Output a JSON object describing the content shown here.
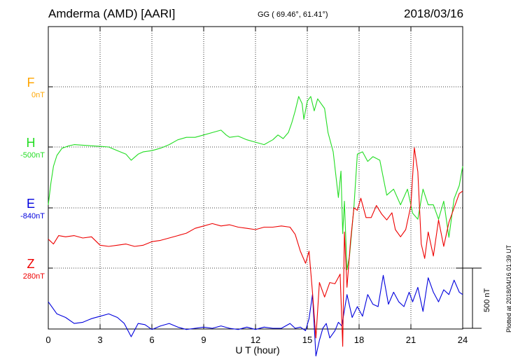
{
  "header": {
    "station": "Amderma (AMD)  [AARI]",
    "coords": "GG ( 69.46°,  61.41°)",
    "date": "2018/03/16"
  },
  "footer": {
    "plotted": "Plotted at 2018/04/16 01:39 UT",
    "scale_label": "500 nT"
  },
  "chart_data": {
    "type": "line",
    "xlabel": "U T (hour)",
    "xlim": [
      0,
      24
    ],
    "xticks": [
      0,
      3,
      6,
      9,
      12,
      15,
      18,
      21,
      24
    ],
    "grid": true,
    "scale_bar_nT": 500,
    "series": [
      {
        "name": "F",
        "baseline": "0nT",
        "color": "#ffa500",
        "values": []
      },
      {
        "name": "H",
        "baseline": "-500nT",
        "color": "#22dd22",
        "points": [
          [
            0,
            -480
          ],
          [
            0.15,
            -300
          ],
          [
            0.3,
            -160
          ],
          [
            0.5,
            -70
          ],
          [
            0.8,
            -10
          ],
          [
            1.2,
            10
          ],
          [
            1.5,
            20
          ],
          [
            2,
            15
          ],
          [
            2.5,
            10
          ],
          [
            3,
            5
          ],
          [
            3.5,
            0
          ],
          [
            4,
            -30
          ],
          [
            4.5,
            -60
          ],
          [
            4.8,
            -110
          ],
          [
            5.2,
            -60
          ],
          [
            5.5,
            -40
          ],
          [
            6,
            -30
          ],
          [
            6.5,
            -10
          ],
          [
            7,
            20
          ],
          [
            7.5,
            60
          ],
          [
            8,
            80
          ],
          [
            8.5,
            80
          ],
          [
            9,
            100
          ],
          [
            9.5,
            120
          ],
          [
            10,
            140
          ],
          [
            10.3,
            100
          ],
          [
            10.5,
            80
          ],
          [
            11,
            90
          ],
          [
            11.5,
            60
          ],
          [
            12,
            40
          ],
          [
            12.5,
            20
          ],
          [
            13,
            60
          ],
          [
            13.3,
            100
          ],
          [
            13.6,
            70
          ],
          [
            13.9,
            120
          ],
          [
            14.1,
            200
          ],
          [
            14.3,
            300
          ],
          [
            14.5,
            420
          ],
          [
            14.7,
            360
          ],
          [
            14.8,
            230
          ],
          [
            15,
            380
          ],
          [
            15.2,
            420
          ],
          [
            15.4,
            300
          ],
          [
            15.6,
            400
          ],
          [
            15.8,
            360
          ],
          [
            16,
            320
          ],
          [
            16.2,
            120
          ],
          [
            16.5,
            -40
          ],
          [
            16.8,
            -420
          ],
          [
            16.95,
            -200
          ],
          [
            17.05,
            -720
          ],
          [
            17.15,
            -450
          ],
          [
            17.3,
            -1020
          ],
          [
            17.45,
            -900
          ],
          [
            17.7,
            -500
          ],
          [
            17.9,
            -60
          ],
          [
            18.2,
            -40
          ],
          [
            18.5,
            -120
          ],
          [
            18.8,
            -80
          ],
          [
            19.2,
            -110
          ],
          [
            19.6,
            -400
          ],
          [
            20,
            -350
          ],
          [
            20.4,
            -480
          ],
          [
            20.8,
            -350
          ],
          [
            21.1,
            -550
          ],
          [
            21.4,
            -600
          ],
          [
            21.7,
            -350
          ],
          [
            22,
            -480
          ],
          [
            22.3,
            -480
          ],
          [
            22.6,
            -600
          ],
          [
            22.9,
            -450
          ],
          [
            23.2,
            -750
          ],
          [
            23.5,
            -430
          ],
          [
            23.8,
            -320
          ],
          [
            24,
            -160
          ]
        ]
      },
      {
        "name": "E",
        "baseline": "-840nT",
        "color": "#0000dd",
        "points": [
          [
            0,
            -780
          ],
          [
            0.5,
            -880
          ],
          [
            1,
            -910
          ],
          [
            1.5,
            -960
          ],
          [
            2,
            -950
          ],
          [
            2.5,
            -920
          ],
          [
            3,
            -900
          ],
          [
            3.5,
            -880
          ],
          [
            4,
            -910
          ],
          [
            4.4,
            -960
          ],
          [
            4.8,
            -1070
          ],
          [
            5.2,
            -960
          ],
          [
            5.6,
            -970
          ],
          [
            6,
            -1010
          ],
          [
            6.5,
            -980
          ],
          [
            7,
            -960
          ],
          [
            7.5,
            -990
          ],
          [
            8,
            -1010
          ],
          [
            8.5,
            -1000
          ],
          [
            9,
            -990
          ],
          [
            9.5,
            -1000
          ],
          [
            10,
            -980
          ],
          [
            10.5,
            -1000
          ],
          [
            11,
            -1010
          ],
          [
            11.5,
            -990
          ],
          [
            12,
            -1010
          ],
          [
            12.5,
            -990
          ],
          [
            13,
            -1000
          ],
          [
            13.5,
            -1000
          ],
          [
            14,
            -960
          ],
          [
            14.3,
            -1000
          ],
          [
            14.6,
            -990
          ],
          [
            14.9,
            -1020
          ],
          [
            15.1,
            -920
          ],
          [
            15.3,
            -720
          ],
          [
            15.5,
            -1230
          ],
          [
            15.7,
            -1100
          ],
          [
            15.9,
            -1000
          ],
          [
            16.1,
            -960
          ],
          [
            16.3,
            -1080
          ],
          [
            16.6,
            -1020
          ],
          [
            16.8,
            -950
          ],
          [
            17,
            -980
          ],
          [
            17.3,
            -720
          ],
          [
            17.6,
            -910
          ],
          [
            17.9,
            -820
          ],
          [
            18.2,
            -900
          ],
          [
            18.5,
            -720
          ],
          [
            18.8,
            -800
          ],
          [
            19.1,
            -820
          ],
          [
            19.4,
            -560
          ],
          [
            19.7,
            -800
          ],
          [
            20,
            -700
          ],
          [
            20.3,
            -780
          ],
          [
            20.6,
            -820
          ],
          [
            20.9,
            -700
          ],
          [
            21.1,
            -780
          ],
          [
            21.4,
            -660
          ],
          [
            21.7,
            -860
          ],
          [
            22,
            -580
          ],
          [
            22.3,
            -700
          ],
          [
            22.6,
            -780
          ],
          [
            22.9,
            -680
          ],
          [
            23.2,
            -720
          ],
          [
            23.5,
            -600
          ],
          [
            23.8,
            -700
          ],
          [
            24,
            -720
          ]
        ]
      },
      {
        "name": "Z",
        "baseline": "280nT",
        "color": "#ee0000",
        "points": [
          [
            0,
            240
          ],
          [
            0.3,
            200
          ],
          [
            0.6,
            270
          ],
          [
            1,
            260
          ],
          [
            1.5,
            270
          ],
          [
            2,
            250
          ],
          [
            2.5,
            260
          ],
          [
            3,
            190
          ],
          [
            3.5,
            180
          ],
          [
            4,
            190
          ],
          [
            4.5,
            200
          ],
          [
            5,
            180
          ],
          [
            5.5,
            190
          ],
          [
            6,
            220
          ],
          [
            6.5,
            230
          ],
          [
            7,
            250
          ],
          [
            7.5,
            270
          ],
          [
            8,
            290
          ],
          [
            8.5,
            330
          ],
          [
            9,
            350
          ],
          [
            9.5,
            370
          ],
          [
            10,
            350
          ],
          [
            10.5,
            360
          ],
          [
            11,
            340
          ],
          [
            11.5,
            330
          ],
          [
            12,
            320
          ],
          [
            12.5,
            340
          ],
          [
            13,
            340
          ],
          [
            13.5,
            350
          ],
          [
            14,
            340
          ],
          [
            14.3,
            280
          ],
          [
            14.6,
            140
          ],
          [
            14.9,
            40
          ],
          [
            15.1,
            140
          ],
          [
            15.3,
            -200
          ],
          [
            15.5,
            -580
          ],
          [
            15.7,
            -120
          ],
          [
            16,
            -240
          ],
          [
            16.3,
            -120
          ],
          [
            16.6,
            -130
          ],
          [
            16.9,
            -50
          ],
          [
            17.05,
            -650
          ],
          [
            17.15,
            300
          ],
          [
            17.3,
            -160
          ],
          [
            17.5,
            220
          ],
          [
            17.7,
            500
          ],
          [
            17.9,
            480
          ],
          [
            18.1,
            580
          ],
          [
            18.4,
            420
          ],
          [
            18.7,
            420
          ],
          [
            19,
            520
          ],
          [
            19.3,
            450
          ],
          [
            19.6,
            400
          ],
          [
            19.9,
            460
          ],
          [
            20.1,
            320
          ],
          [
            20.4,
            260
          ],
          [
            20.7,
            320
          ],
          [
            21,
            520
          ],
          [
            21.2,
            1000
          ],
          [
            21.4,
            800
          ],
          [
            21.6,
            200
          ],
          [
            21.8,
            80
          ],
          [
            22,
            300
          ],
          [
            22.3,
            100
          ],
          [
            22.6,
            400
          ],
          [
            22.9,
            180
          ],
          [
            23.2,
            380
          ],
          [
            23.5,
            500
          ],
          [
            23.8,
            620
          ],
          [
            24,
            640
          ]
        ]
      }
    ]
  }
}
